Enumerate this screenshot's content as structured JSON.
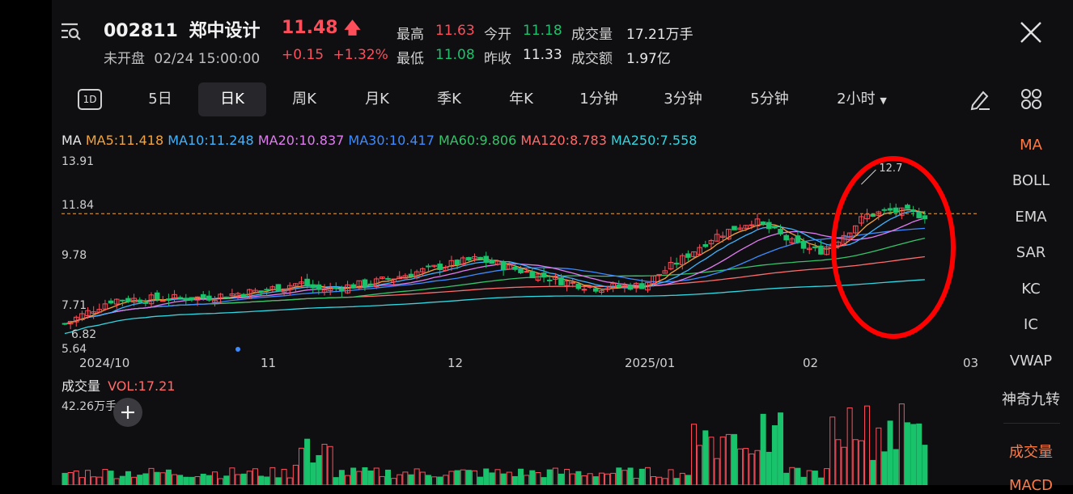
{
  "header": {
    "code": "002811",
    "name": "郑中设计",
    "price": "11.48",
    "status": "未开盘",
    "datetime": "02/24 15:00:00",
    "change": "+0.15",
    "change_pct": "+1.32%"
  },
  "quote": {
    "high_label": "最高",
    "high": "11.63",
    "open_label": "今开",
    "open": "11.18",
    "volume_label": "成交量",
    "volume": "17.21万手",
    "low_label": "最低",
    "low": "11.08",
    "prev_close_label": "昨收",
    "prev_close": "11.33",
    "amount_label": "成交额",
    "amount": "1.97亿"
  },
  "tabs": [
    {
      "label": "1D"
    },
    {
      "label": "5日"
    },
    {
      "label": "日K"
    },
    {
      "label": "周K"
    },
    {
      "label": "月K"
    },
    {
      "label": "季K"
    },
    {
      "label": "年K"
    },
    {
      "label": "1分钟"
    },
    {
      "label": "3分钟"
    },
    {
      "label": "5分钟"
    },
    {
      "label": "2小时"
    }
  ],
  "ma_legend": {
    "prefix": "MA",
    "ma5": "MA5:11.418",
    "ma10": "MA10:11.248",
    "ma20": "MA20:10.837",
    "ma30": "MA30:10.417",
    "ma60": "MA60:9.806",
    "ma120": "MA120:8.783",
    "ma250": "MA250:7.558"
  },
  "colors": {
    "up": "#ff4d5a",
    "down": "#18c36b",
    "ma5": "#f2a33a",
    "ma10": "#3fb4ff",
    "ma20": "#e07cf0",
    "ma30": "#3d8bff",
    "ma60": "#35c46a",
    "ma120": "#ff6b6b",
    "ma250": "#32d6e0",
    "highlight": "#ff0000"
  },
  "chart": {
    "y_labels": [
      "13.91",
      "11.84",
      "9.78",
      "7.71",
      "6.82",
      "5.64"
    ],
    "x_labels": [
      "2024/10",
      "11",
      "12",
      "2025/01",
      "02",
      "03"
    ],
    "peak_label": "12.7",
    "current_price_line": 11.48
  },
  "volume": {
    "label": "成交量",
    "vol_text": "VOL:17.21",
    "max_text": "42.26万手"
  },
  "indicators": [
    "MA",
    "BOLL",
    "EMA",
    "SAR",
    "KC",
    "IC",
    "VWAP",
    "神奇九转",
    "成交量",
    "MACD"
  ],
  "chart_data": {
    "type": "candlestick",
    "y_range": [
      5.64,
      13.91
    ],
    "x_ticks": [
      "2024/10",
      "11",
      "12",
      "2025/01",
      "02",
      "03"
    ]
  }
}
